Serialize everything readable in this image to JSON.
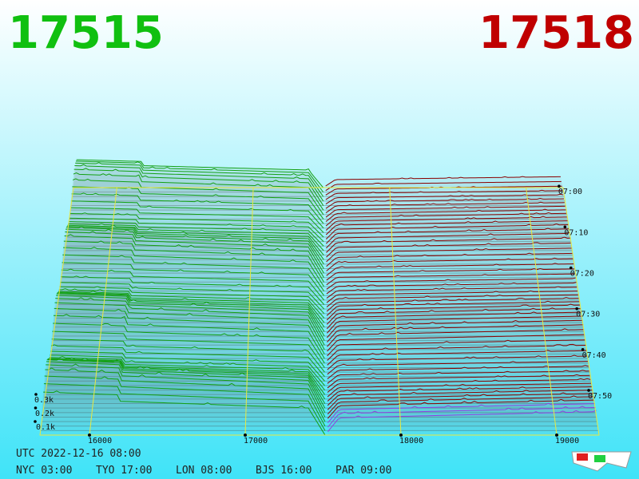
{
  "header": {
    "bid": "17515",
    "ask": "17518"
  },
  "price_axis": [
    "16000",
    "17000",
    "18000",
    "19000"
  ],
  "time_axis": [
    "07:00",
    "07:10",
    "07:20",
    "07:30",
    "07:40",
    "07:50"
  ],
  "depth_axis": [
    "0.1k",
    "0.2k",
    "0.3k"
  ],
  "footer": {
    "utc": "UTC 2022-12-16 08:00",
    "zones": [
      "NYC 03:00",
      "TYO 17:00",
      "LON 08:00",
      "BJS 16:00",
      "PAR 09:00"
    ]
  }
}
